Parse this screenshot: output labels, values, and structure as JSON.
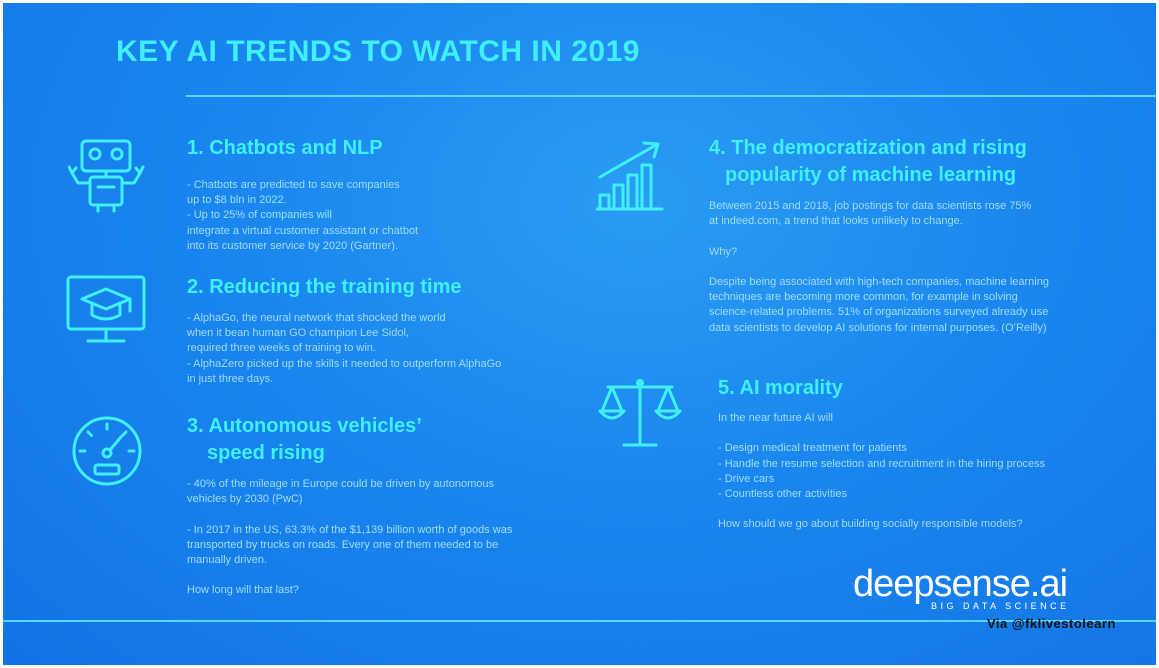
{
  "title": "KEY AI TRENDS TO WATCH IN 2019",
  "sections": [
    {
      "title": "1. Chatbots and NLP",
      "icon": "robot-icon",
      "lines": [
        "- Chatbots are predicted to save companies",
        "up to $8 bln in 2022.",
        "- Up to 25% of companies will",
        "integrate a virtual customer assistant or chatbot",
        "into its customer service by 2020 (Gartner)."
      ]
    },
    {
      "title": "2. Reducing the training time",
      "icon": "graduation-monitor-icon",
      "lines": [
        "- AlphaGo, the neural network that shocked the world",
        "when it bean human GO champion Lee Sidol,",
        "required three weeks of training to win.",
        "- AlphaZero picked up the skills it needed to outperform AlphaGo",
        "in just three days."
      ]
    },
    {
      "title_line1": "3. Autonomous vehicles’",
      "title_line2": "speed rising",
      "icon": "speedometer-icon",
      "lines": [
        "- 40% of the mileage in Europe could be driven by autonomous",
        "vehicles by 2030 (PwC)",
        "",
        "- In 2017 in the US, 63.3% of the $1,139 billion worth of goods was",
        "transported by trucks on roads. Every one of them needed to be",
        "manually driven.",
        "",
        "How long will that last?"
      ]
    },
    {
      "title_line1": "4. The democratization and rising",
      "title_line2": "popularity of machine learning",
      "icon": "growth-chart-icon",
      "lines": [
        "Between 2015 and 2018, job postings for data scientists rose 75%",
        "at indeed.com, a trend that looks unlikely to change.",
        "",
        "Why?",
        "",
        "Despite being associated with high-tech companies, machine learning",
        "techniques are becoming more common, for example in solving",
        "science-related problems. 51% of organizations surveyed already use",
        "data scientists to develop AI solutions for internal purposes. (O’Reilly)"
      ]
    },
    {
      "title": "5. AI morality",
      "icon": "scales-icon",
      "lines": [
        "In the near future AI will",
        "",
        "- Design medical treatment for patients",
        "- Handle the resume selection and recruitment in the hiring process",
        "- Drive cars",
        "- Countless other activities",
        "",
        "How should we go about building socially responsible models?"
      ]
    }
  ],
  "logo": {
    "name": "deepsense.ai",
    "tagline": "BIG DATA SCIENCE"
  },
  "credit": "Via @fklivestolearn",
  "colors": {
    "accent": "#3ef0f6",
    "body_text": "#9fdcff",
    "background": "#1a86ee"
  }
}
